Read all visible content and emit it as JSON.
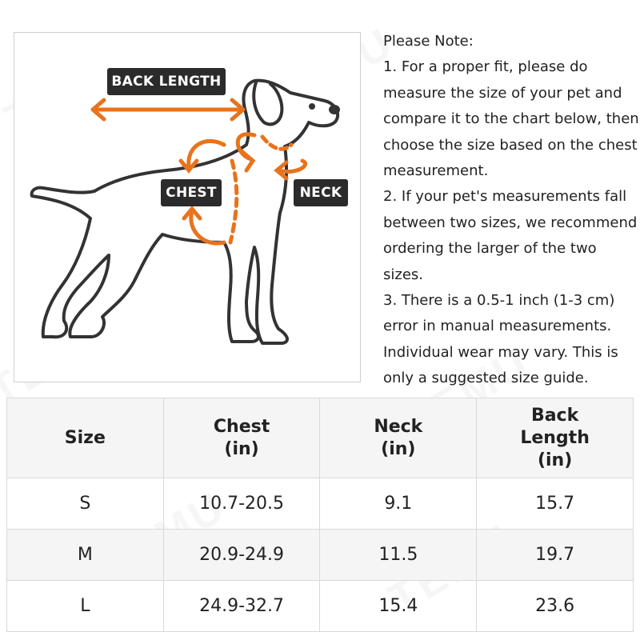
{
  "illustration": {
    "labels": {
      "back_length": "BACK LENGTH",
      "chest": "CHEST",
      "neck": "NECK"
    },
    "arrow_color": "#E8731C",
    "label_bg": "#2B2B2B",
    "outline_color": "#333333"
  },
  "watermark": "TEMU",
  "notes": {
    "heading": "Please Note:",
    "items": [
      "1. For a proper fit, please do measure the size of your pet and compare it to the chart below, then choose the size based on the chest measurement.",
      "2. If your pet's measurements fall between two sizes, we recommend ordering the larger of the two sizes.",
      "3. There is a 0.5-1 inch (1-3 cm) error in manual measurements. Individual wear may vary. This is only a suggested size guide."
    ]
  },
  "table": {
    "headers": [
      "Size",
      "Chest\n(in)",
      "Neck\n(in)",
      "Back\nLength\n(in)"
    ],
    "header_lines": [
      [
        "Size"
      ],
      [
        "Chest",
        "(in)"
      ],
      [
        "Neck",
        "(in)"
      ],
      [
        "Back",
        "Length",
        "(in)"
      ]
    ],
    "rows": [
      [
        "S",
        "10.7-20.5",
        "9.1",
        "15.7"
      ],
      [
        "M",
        "20.9-24.9",
        "11.5",
        "19.7"
      ],
      [
        "L",
        "24.9-32.7",
        "15.4",
        "23.6"
      ]
    ]
  }
}
